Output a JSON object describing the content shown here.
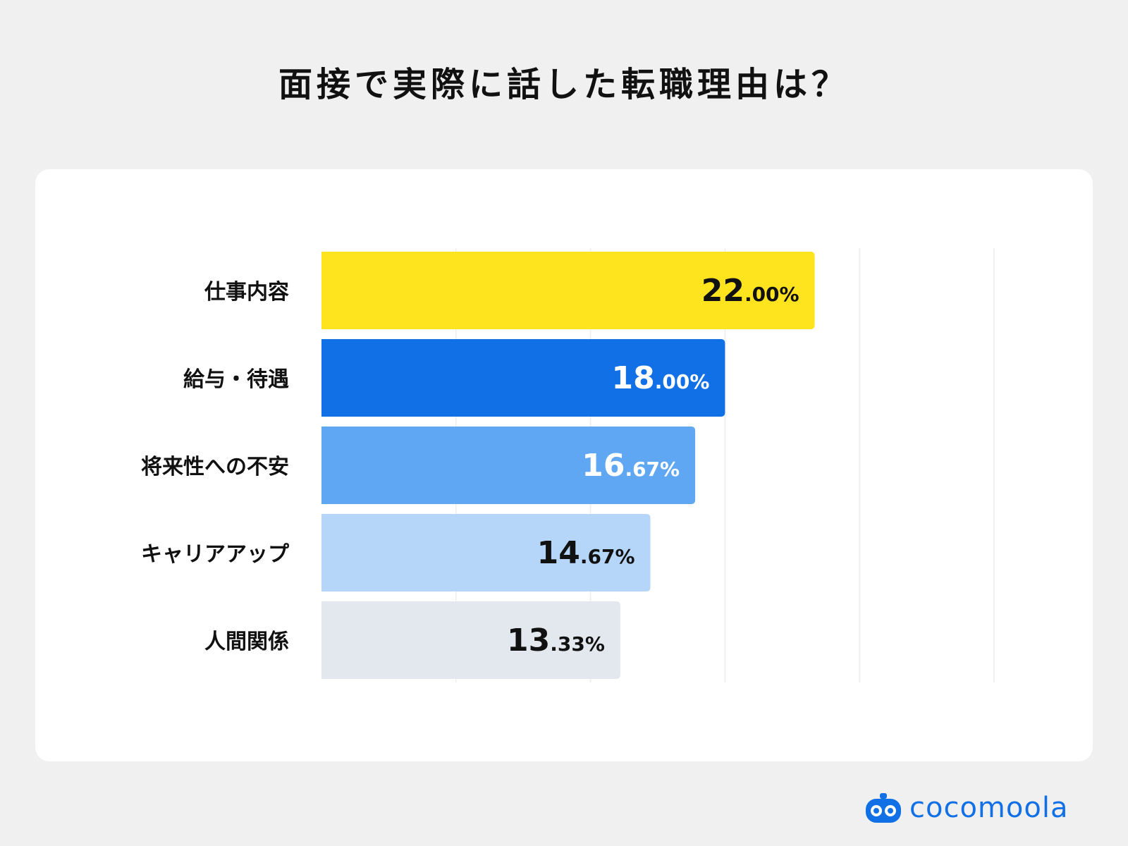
{
  "title": "面接で実際に話した転職理由は？",
  "chart_data": {
    "type": "bar",
    "orientation": "horizontal",
    "title": "面接で実際に話した転職理由は？",
    "categories": [
      "仕事内容",
      "給与・待遇",
      "将来性への不安",
      "キャリアアップ",
      "人間関係"
    ],
    "values": [
      22.0,
      18.0,
      16.67,
      14.67,
      13.33
    ],
    "value_labels": [
      {
        "int": "22",
        "frac": ".00%"
      },
      {
        "int": "18",
        "frac": ".00%"
      },
      {
        "int": "16",
        "frac": ".67%"
      },
      {
        "int": "14",
        "frac": ".67%"
      },
      {
        "int": "13",
        "frac": ".33%"
      }
    ],
    "bar_colors": [
      "#fee41f",
      "#1270e6",
      "#5fa7f2",
      "#b5d6f9",
      "#e3e8ee"
    ],
    "label_colors": [
      "#111111",
      "#ffffff",
      "#ffffff",
      "#111111",
      "#111111"
    ],
    "xlim": [
      0,
      30
    ],
    "grid": true,
    "grid_values": [
      6,
      12,
      18,
      24,
      30
    ],
    "legend": "none"
  },
  "branding": {
    "logo_text": "cocomoola",
    "logo_icon": "cocomoola-mascot-icon",
    "color": "#1270e6"
  }
}
